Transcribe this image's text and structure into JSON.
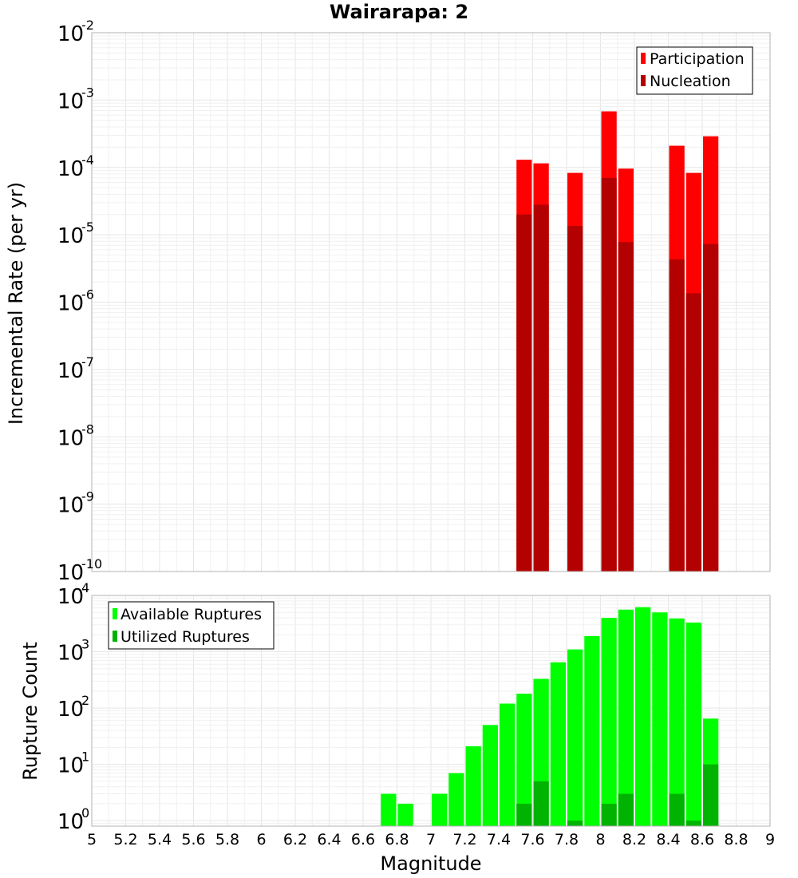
{
  "chart_data": [
    {
      "type": "bar",
      "title": "Wairarapa: 2",
      "xlabel": "Magnitude",
      "ylabel": "Incremental Rate (per yr)",
      "y_scale": "log",
      "xlim": [
        5,
        9
      ],
      "ylim": [
        1e-10,
        0.01
      ],
      "bar_width": 0.1,
      "grid": true,
      "legend_position": "top-right",
      "series": [
        {
          "name": "Participation",
          "color": "#ff0000",
          "x": [
            7.55,
            7.65,
            7.85,
            8.05,
            8.15,
            8.45,
            8.55,
            8.65
          ],
          "values": [
            0.00013,
            0.000115,
            8.3e-05,
            0.00068,
            9.6e-05,
            0.00021,
            8.3e-05,
            0.00029
          ]
        },
        {
          "name": "Nucleation",
          "color": "#b30000",
          "x": [
            7.55,
            7.65,
            7.85,
            8.05,
            8.15,
            8.45,
            8.55,
            8.65
          ],
          "values": [
            2e-05,
            2.8e-05,
            1.35e-05,
            7e-05,
            7.8e-06,
            4.3e-06,
            1.35e-06,
            7.3e-06
          ]
        }
      ]
    },
    {
      "type": "bar",
      "xlabel": "Magnitude",
      "ylabel": "Rupture Count",
      "y_scale": "log",
      "xlim": [
        5,
        9
      ],
      "ylim": [
        0.8,
        10000
      ],
      "bar_width": 0.1,
      "grid": true,
      "legend_position": "top-left",
      "series": [
        {
          "name": "Available Ruptures",
          "color": "#00ff00",
          "x": [
            6.75,
            6.85,
            7.05,
            7.15,
            7.25,
            7.35,
            7.45,
            7.55,
            7.65,
            7.75,
            7.85,
            7.95,
            8.05,
            8.15,
            8.25,
            8.35,
            8.45,
            8.55,
            8.65
          ],
          "values": [
            3,
            2,
            3,
            7,
            21,
            50,
            120,
            180,
            330,
            650,
            1100,
            1900,
            4000,
            5600,
            6200,
            5000,
            3900,
            3300,
            65
          ]
        },
        {
          "name": "Utilized Ruptures",
          "color": "#00b300",
          "x": [
            7.55,
            7.65,
            7.85,
            8.05,
            8.15,
            8.45,
            8.55,
            8.65
          ],
          "values": [
            2,
            5,
            1,
            2,
            3,
            3,
            1,
            10
          ]
        }
      ]
    }
  ],
  "x_ticks": [
    "5",
    "5.2",
    "5.4",
    "5.6",
    "5.8",
    "6",
    "6.2",
    "6.4",
    "6.6",
    "6.8",
    "7",
    "7.2",
    "7.4",
    "7.6",
    "7.8",
    "8",
    "8.2",
    "8.4",
    "8.6",
    "8.8",
    "9"
  ],
  "top_y_tick_exponents": [
    "-10",
    "-9",
    "-8",
    "-7",
    "-6",
    "-5",
    "-4",
    "-3",
    "-2"
  ],
  "bottom_y_tick_exponents": [
    "0",
    "1",
    "2",
    "3",
    "4"
  ],
  "y_tick_base": "10"
}
